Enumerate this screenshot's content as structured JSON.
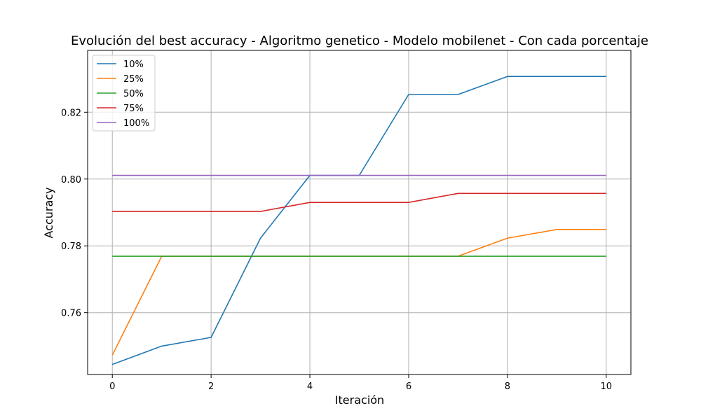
{
  "chart_data": {
    "type": "line",
    "title": "Evolución del best accuracy - Algoritmo genetico - Modelo mobilenet - Con cada porcentaje",
    "xlabel": "Iteración",
    "ylabel": "Accuracy",
    "xlim": [
      -0.5,
      10.5
    ],
    "ylim": [
      0.7415,
      0.8385
    ],
    "xticks": [
      0,
      2,
      4,
      6,
      8,
      10
    ],
    "yticks": [
      0.76,
      0.78,
      0.8,
      0.82
    ],
    "ytick_labels": [
      "0.76",
      "0.78",
      "0.80",
      "0.82"
    ],
    "grid": true,
    "legend_position": "top-left",
    "x": [
      0,
      1,
      2,
      3,
      4,
      5,
      6,
      7,
      8,
      9,
      10
    ],
    "series": [
      {
        "name": "10%",
        "color": "#1f77b4",
        "values": [
          0.7445,
          0.75,
          0.7526,
          0.7823,
          0.8011,
          0.8011,
          0.8253,
          0.8253,
          0.8307,
          0.8307,
          0.8307
        ]
      },
      {
        "name": "25%",
        "color": "#ff7f0e",
        "values": [
          0.7473,
          0.7769,
          0.7769,
          0.7769,
          0.7769,
          0.7769,
          0.7769,
          0.7769,
          0.7823,
          0.7849,
          0.7849
        ]
      },
      {
        "name": "50%",
        "color": "#2ca02c",
        "values": [
          0.7769,
          0.7769,
          0.7769,
          0.7769,
          0.7769,
          0.7769,
          0.7769,
          0.7769,
          0.7769,
          0.7769,
          0.7769
        ]
      },
      {
        "name": "75%",
        "color": "#d62728",
        "values": [
          0.7903,
          0.7903,
          0.7903,
          0.7903,
          0.793,
          0.793,
          0.793,
          0.7957,
          0.7957,
          0.7957,
          0.7957
        ]
      },
      {
        "name": "100%",
        "color": "#9467bd",
        "values": [
          0.8011,
          0.8011,
          0.8011,
          0.8011,
          0.8011,
          0.8011,
          0.8011,
          0.8011,
          0.8011,
          0.8011,
          0.8011
        ]
      }
    ]
  }
}
